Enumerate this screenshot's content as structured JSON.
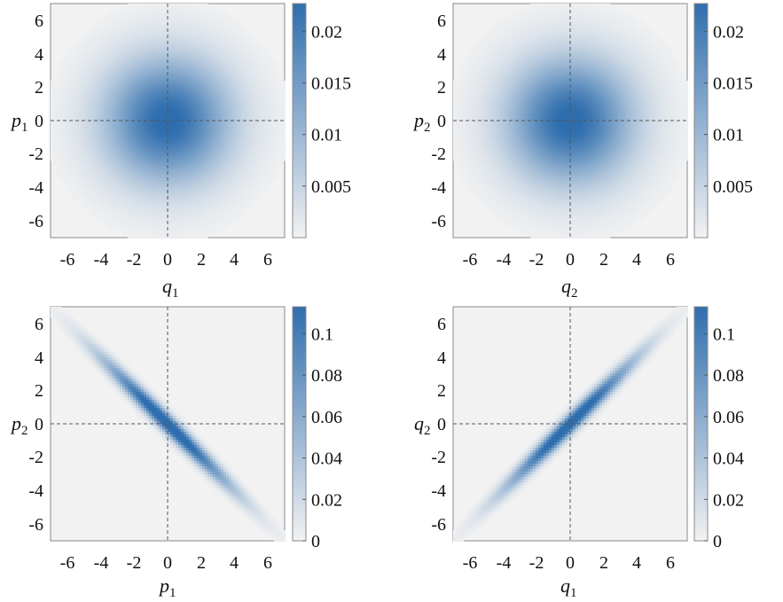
{
  "chart_data": [
    {
      "type": "heatmap",
      "panel": "top-left",
      "xlabel": {
        "base": "q",
        "sub": "1"
      },
      "ylabel": {
        "base": "p",
        "sub": "1"
      },
      "xlim": [
        -7,
        7
      ],
      "ylim": [
        -7,
        7
      ],
      "xticks": [
        "-6",
        "-4",
        "-2",
        "0",
        "2",
        "4",
        "6"
      ],
      "yticks": [
        "6",
        "4",
        "2",
        "0",
        "-2",
        "-4",
        "-6"
      ],
      "distribution": {
        "shape": "isotropic-gaussian",
        "sigma_x": 2.6,
        "sigma_y": 2.6,
        "correlation": 0
      },
      "colorbar": {
        "min": 0,
        "max": 0.0227,
        "ticks": [
          0.005,
          0.01,
          0.015,
          0.02
        ],
        "tick_labels": [
          "0.005",
          "0.01",
          "0.015",
          "0.02"
        ]
      },
      "crosshair": {
        "x": 0,
        "y": 0
      }
    },
    {
      "type": "heatmap",
      "panel": "top-right",
      "xlabel": {
        "base": "q",
        "sub": "2"
      },
      "ylabel": {
        "base": "p",
        "sub": "2"
      },
      "xlim": [
        -7,
        7
      ],
      "ylim": [
        -7,
        7
      ],
      "xticks": [
        "-6",
        "-4",
        "-2",
        "0",
        "2",
        "4",
        "6"
      ],
      "yticks": [
        "6",
        "4",
        "2",
        "0",
        "-2",
        "-4",
        "-6"
      ],
      "distribution": {
        "shape": "isotropic-gaussian",
        "sigma_x": 2.6,
        "sigma_y": 2.6,
        "correlation": 0
      },
      "colorbar": {
        "min": 0,
        "max": 0.0227,
        "ticks": [
          0.005,
          0.01,
          0.015,
          0.02
        ],
        "tick_labels": [
          "0.005",
          "0.01",
          "0.015",
          "0.02"
        ]
      },
      "crosshair": {
        "x": 0,
        "y": 0
      }
    },
    {
      "type": "heatmap",
      "panel": "bottom-left",
      "xlabel": {
        "base": "p",
        "sub": "1"
      },
      "ylabel": {
        "base": "p",
        "sub": "2"
      },
      "xlim": [
        -7,
        7
      ],
      "ylim": [
        -7,
        7
      ],
      "xticks": [
        "-6",
        "-4",
        "-2",
        "0",
        "2",
        "4",
        "6"
      ],
      "yticks": [
        "6",
        "4",
        "2",
        "0",
        "-2",
        "-4",
        "-6"
      ],
      "distribution": {
        "shape": "correlated-gaussian",
        "sigma_x": 2.6,
        "sigma_y": 2.6,
        "correlation": -0.985
      },
      "colorbar": {
        "min": 0,
        "max": 0.113,
        "ticks": [
          0,
          0.02,
          0.04,
          0.06,
          0.08,
          0.1
        ],
        "tick_labels": [
          "0",
          "0.02",
          "0.04",
          "0.06",
          "0.08",
          "0.1"
        ]
      },
      "crosshair": {
        "x": 0,
        "y": 0
      }
    },
    {
      "type": "heatmap",
      "panel": "bottom-right",
      "xlabel": {
        "base": "q",
        "sub": "1"
      },
      "ylabel": {
        "base": "q",
        "sub": "2"
      },
      "xlim": [
        -7,
        7
      ],
      "ylim": [
        -7,
        7
      ],
      "xticks": [
        "-6",
        "-4",
        "-2",
        "0",
        "2",
        "4",
        "6"
      ],
      "yticks": [
        "6",
        "4",
        "2",
        "0",
        "-2",
        "-4",
        "-6"
      ],
      "distribution": {
        "shape": "correlated-gaussian",
        "sigma_x": 2.6,
        "sigma_y": 2.6,
        "correlation": 0.985
      },
      "colorbar": {
        "min": 0,
        "max": 0.113,
        "ticks": [
          0,
          0.02,
          0.04,
          0.06,
          0.08,
          0.1
        ],
        "tick_labels": [
          "0",
          "0.02",
          "0.04",
          "0.06",
          "0.08",
          "0.1"
        ]
      },
      "crosshair": {
        "x": 0,
        "y": 0
      }
    }
  ],
  "colormap": {
    "low": "#f2f2f2",
    "high": "#2f6eae"
  },
  "crosshair_color": "#555555"
}
